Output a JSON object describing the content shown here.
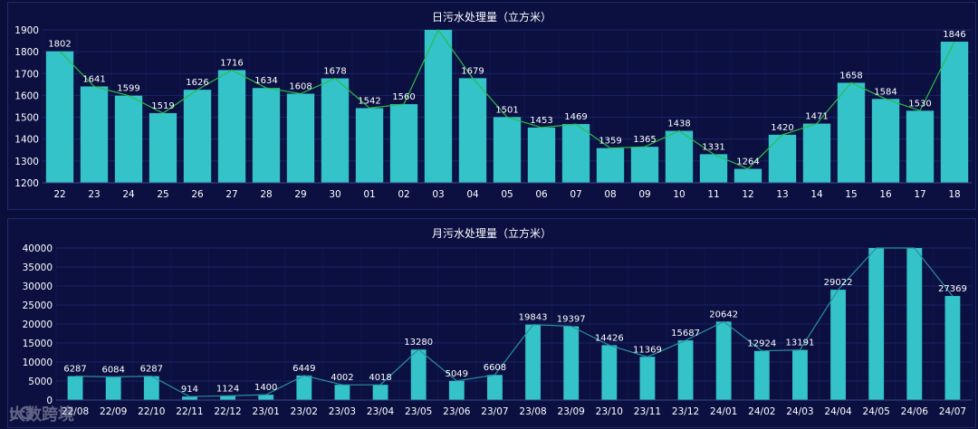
{
  "panels": {
    "daily_title": "日污水处理量（立方米）",
    "monthly_title": "月污水处理量（立方米）"
  },
  "watermark": {
    "text": "大数跨境"
  },
  "colors": {
    "bar": "#33c3c9",
    "daily_line": "#2dbb4a",
    "monthly_line": "#2b8fa0",
    "grid": "#1b2568",
    "background": "#0a0e3a"
  },
  "chart_data": [
    {
      "type": "bar",
      "title": "日污水处理量（立方米）",
      "xlabel": "",
      "ylabel": "",
      "ylim": [
        1200,
        1900
      ],
      "yticks": [
        1200,
        1300,
        1400,
        1500,
        1600,
        1700,
        1800,
        1900
      ],
      "categories": [
        "22",
        "23",
        "24",
        "25",
        "26",
        "27",
        "28",
        "29",
        "30",
        "01",
        "02",
        "03",
        "04",
        "05",
        "06",
        "07",
        "08",
        "09",
        "10",
        "11",
        "12",
        "13",
        "14",
        "15",
        "16",
        "17",
        "18"
      ],
      "values": [
        1802,
        1641,
        1599,
        1519,
        1626,
        1716,
        1634,
        1608,
        1678,
        1542,
        1560,
        1900,
        1679,
        1501,
        1453,
        1469,
        1359,
        1365,
        1438,
        1331,
        1264,
        1420,
        1471,
        1658,
        1584,
        1530,
        1846
      ],
      "labels": [
        "1802",
        "1641",
        "1599",
        "1519",
        "1626",
        "1716",
        "1634",
        "1608",
        "1678",
        "1542",
        "1560",
        "",
        "1679",
        "1501",
        "1453",
        "1469",
        "1359",
        "1365",
        "1438",
        "1331",
        "1264",
        "1420",
        "1471",
        "1658",
        "1584",
        "1530",
        "1846"
      ],
      "overlay_line": true,
      "grid": true
    },
    {
      "type": "bar",
      "title": "月污水处理量（立方米）",
      "xlabel": "",
      "ylabel": "",
      "ylim": [
        0,
        40000
      ],
      "yticks": [
        0,
        5000,
        10000,
        15000,
        20000,
        25000,
        30000,
        35000,
        40000
      ],
      "categories": [
        "22/08",
        "22/09",
        "22/10",
        "22/11",
        "22/12",
        "23/01",
        "23/02",
        "23/03",
        "23/04",
        "23/05",
        "23/06",
        "23/07",
        "23/08",
        "23/09",
        "23/10",
        "23/11",
        "23/12",
        "24/01",
        "24/02",
        "24/03",
        "24/04",
        "24/05",
        "24/06",
        "24/07"
      ],
      "values": [
        6287,
        6084,
        6287,
        914,
        1124,
        1400,
        6449,
        4002,
        4018,
        13280,
        5049,
        6608,
        19843,
        19397,
        14426,
        11369,
        15687,
        20642,
        12924,
        13191,
        29022,
        40000,
        40000,
        27369
      ],
      "labels": [
        "6287",
        "6084",
        "6287",
        "914",
        "1124",
        "1400",
        "6449",
        "4002",
        "4018",
        "13280",
        "5049",
        "6608",
        "19843",
        "19397",
        "14426",
        "11369",
        "15687",
        "20642",
        "12924",
        "13191",
        "29022",
        "",
        "",
        "27369"
      ],
      "overlay_line": true,
      "grid": true
    }
  ]
}
